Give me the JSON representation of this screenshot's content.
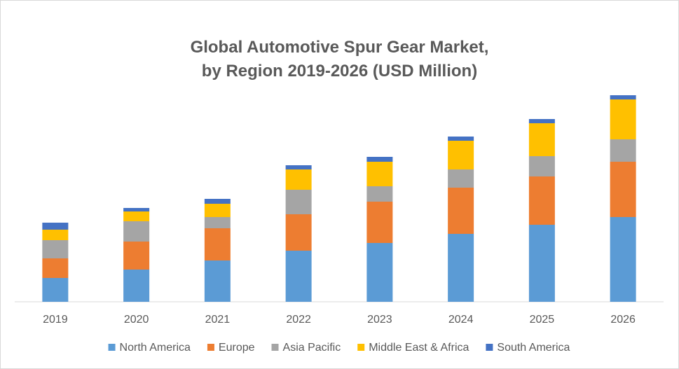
{
  "chart_data": {
    "type": "bar",
    "stacked": true,
    "title_line1": "Global Automotive Spur Gear Market,",
    "title_line2": "by Region 2019-2026 (USD Million)",
    "categories": [
      "2019",
      "2020",
      "2021",
      "2022",
      "2023",
      "2024",
      "2025",
      "2026"
    ],
    "series": [
      {
        "name": "North America",
        "color": "#5b9bd5",
        "values": [
          34,
          46,
          59,
          73,
          84,
          97,
          110,
          121
        ]
      },
      {
        "name": "Europe",
        "color": "#ed7d31",
        "values": [
          28,
          40,
          46,
          52,
          59,
          66,
          69,
          79
        ]
      },
      {
        "name": "Asia Pacific",
        "color": "#a5a5a5",
        "values": [
          26,
          29,
          16,
          35,
          22,
          26,
          29,
          32
        ]
      },
      {
        "name": "Middle East & Africa",
        "color": "#ffc000",
        "values": [
          15,
          14,
          19,
          29,
          35,
          41,
          47,
          57
        ]
      },
      {
        "name": "South America",
        "color": "#4472c4",
        "values": [
          10,
          5,
          7,
          6,
          7,
          6,
          6,
          6
        ]
      }
    ],
    "ylim": [
      0,
      300
    ],
    "xlabel": "",
    "ylabel": "",
    "grid": false,
    "legend_position": "bottom"
  }
}
